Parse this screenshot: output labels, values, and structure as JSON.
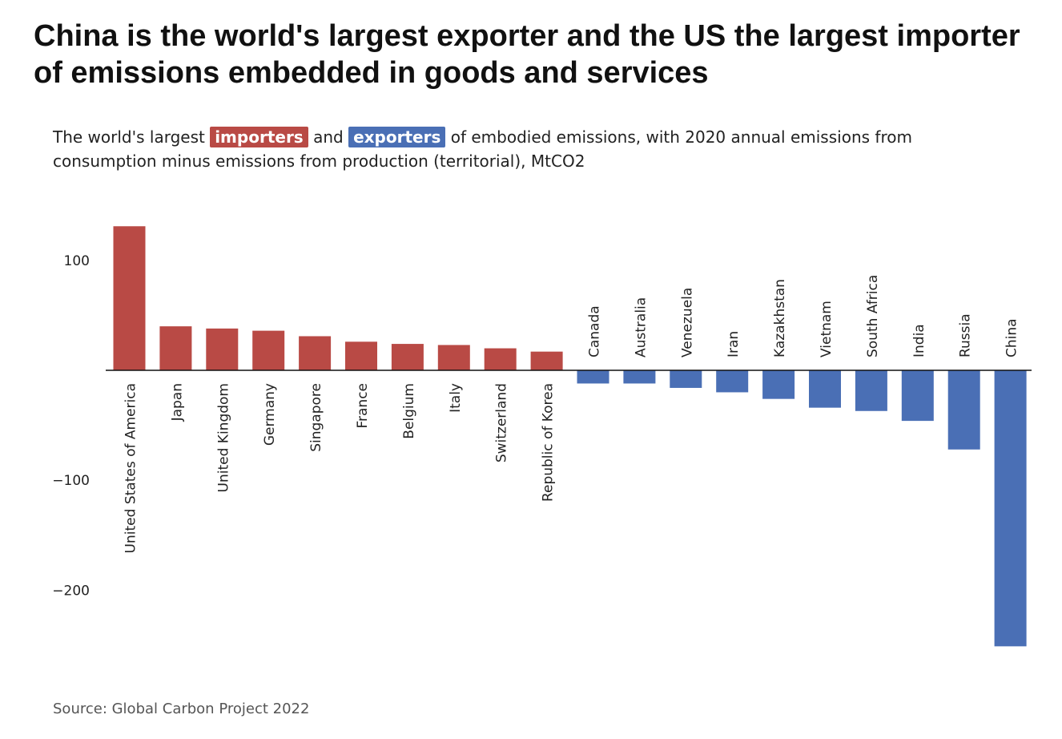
{
  "headline": "China is the world's largest exporter and the US the largest importer of emissions embedded in goods and services",
  "subtitle": {
    "part1": "The world's largest",
    "importers_label": "importers",
    "part2": "and",
    "exporters_label": "exporters",
    "part3": "of embodied emissions, with 2020 annual emissions from consumption minus emissions from production (territorial), MtCO2"
  },
  "source": "Source: Global Carbon Project 2022",
  "colors": {
    "importer": "#b94a45",
    "exporter": "#4a6fb5",
    "axis": "#111111",
    "text": "#222222"
  },
  "chart_data": {
    "type": "bar",
    "title": "",
    "xlabel": "",
    "ylabel": "",
    "ylim": [
      -255,
      135
    ],
    "yticks": [
      100,
      -100,
      -200
    ],
    "ytick_labels": [
      "100",
      "−100",
      "−200"
    ],
    "grid": false,
    "categories": [
      "United States of America",
      "Japan",
      "United Kingdom",
      "Germany",
      "Singapore",
      "France",
      "Belgium",
      "Italy",
      "Switzerland",
      "Republic of Korea",
      "Canada",
      "Australia",
      "Venezuela",
      "Iran",
      "Kazakhstan",
      "Vietnam",
      "South Africa",
      "India",
      "Russia",
      "China"
    ],
    "values": [
      131,
      40,
      38,
      36,
      31,
      26,
      24,
      23,
      20,
      17,
      -12,
      -12,
      -16,
      -20,
      -26,
      -34,
      -37,
      -46,
      -72,
      -251
    ],
    "groups": [
      "importer",
      "importer",
      "importer",
      "importer",
      "importer",
      "importer",
      "importer",
      "importer",
      "importer",
      "importer",
      "exporter",
      "exporter",
      "exporter",
      "exporter",
      "exporter",
      "exporter",
      "exporter",
      "exporter",
      "exporter",
      "exporter"
    ]
  }
}
